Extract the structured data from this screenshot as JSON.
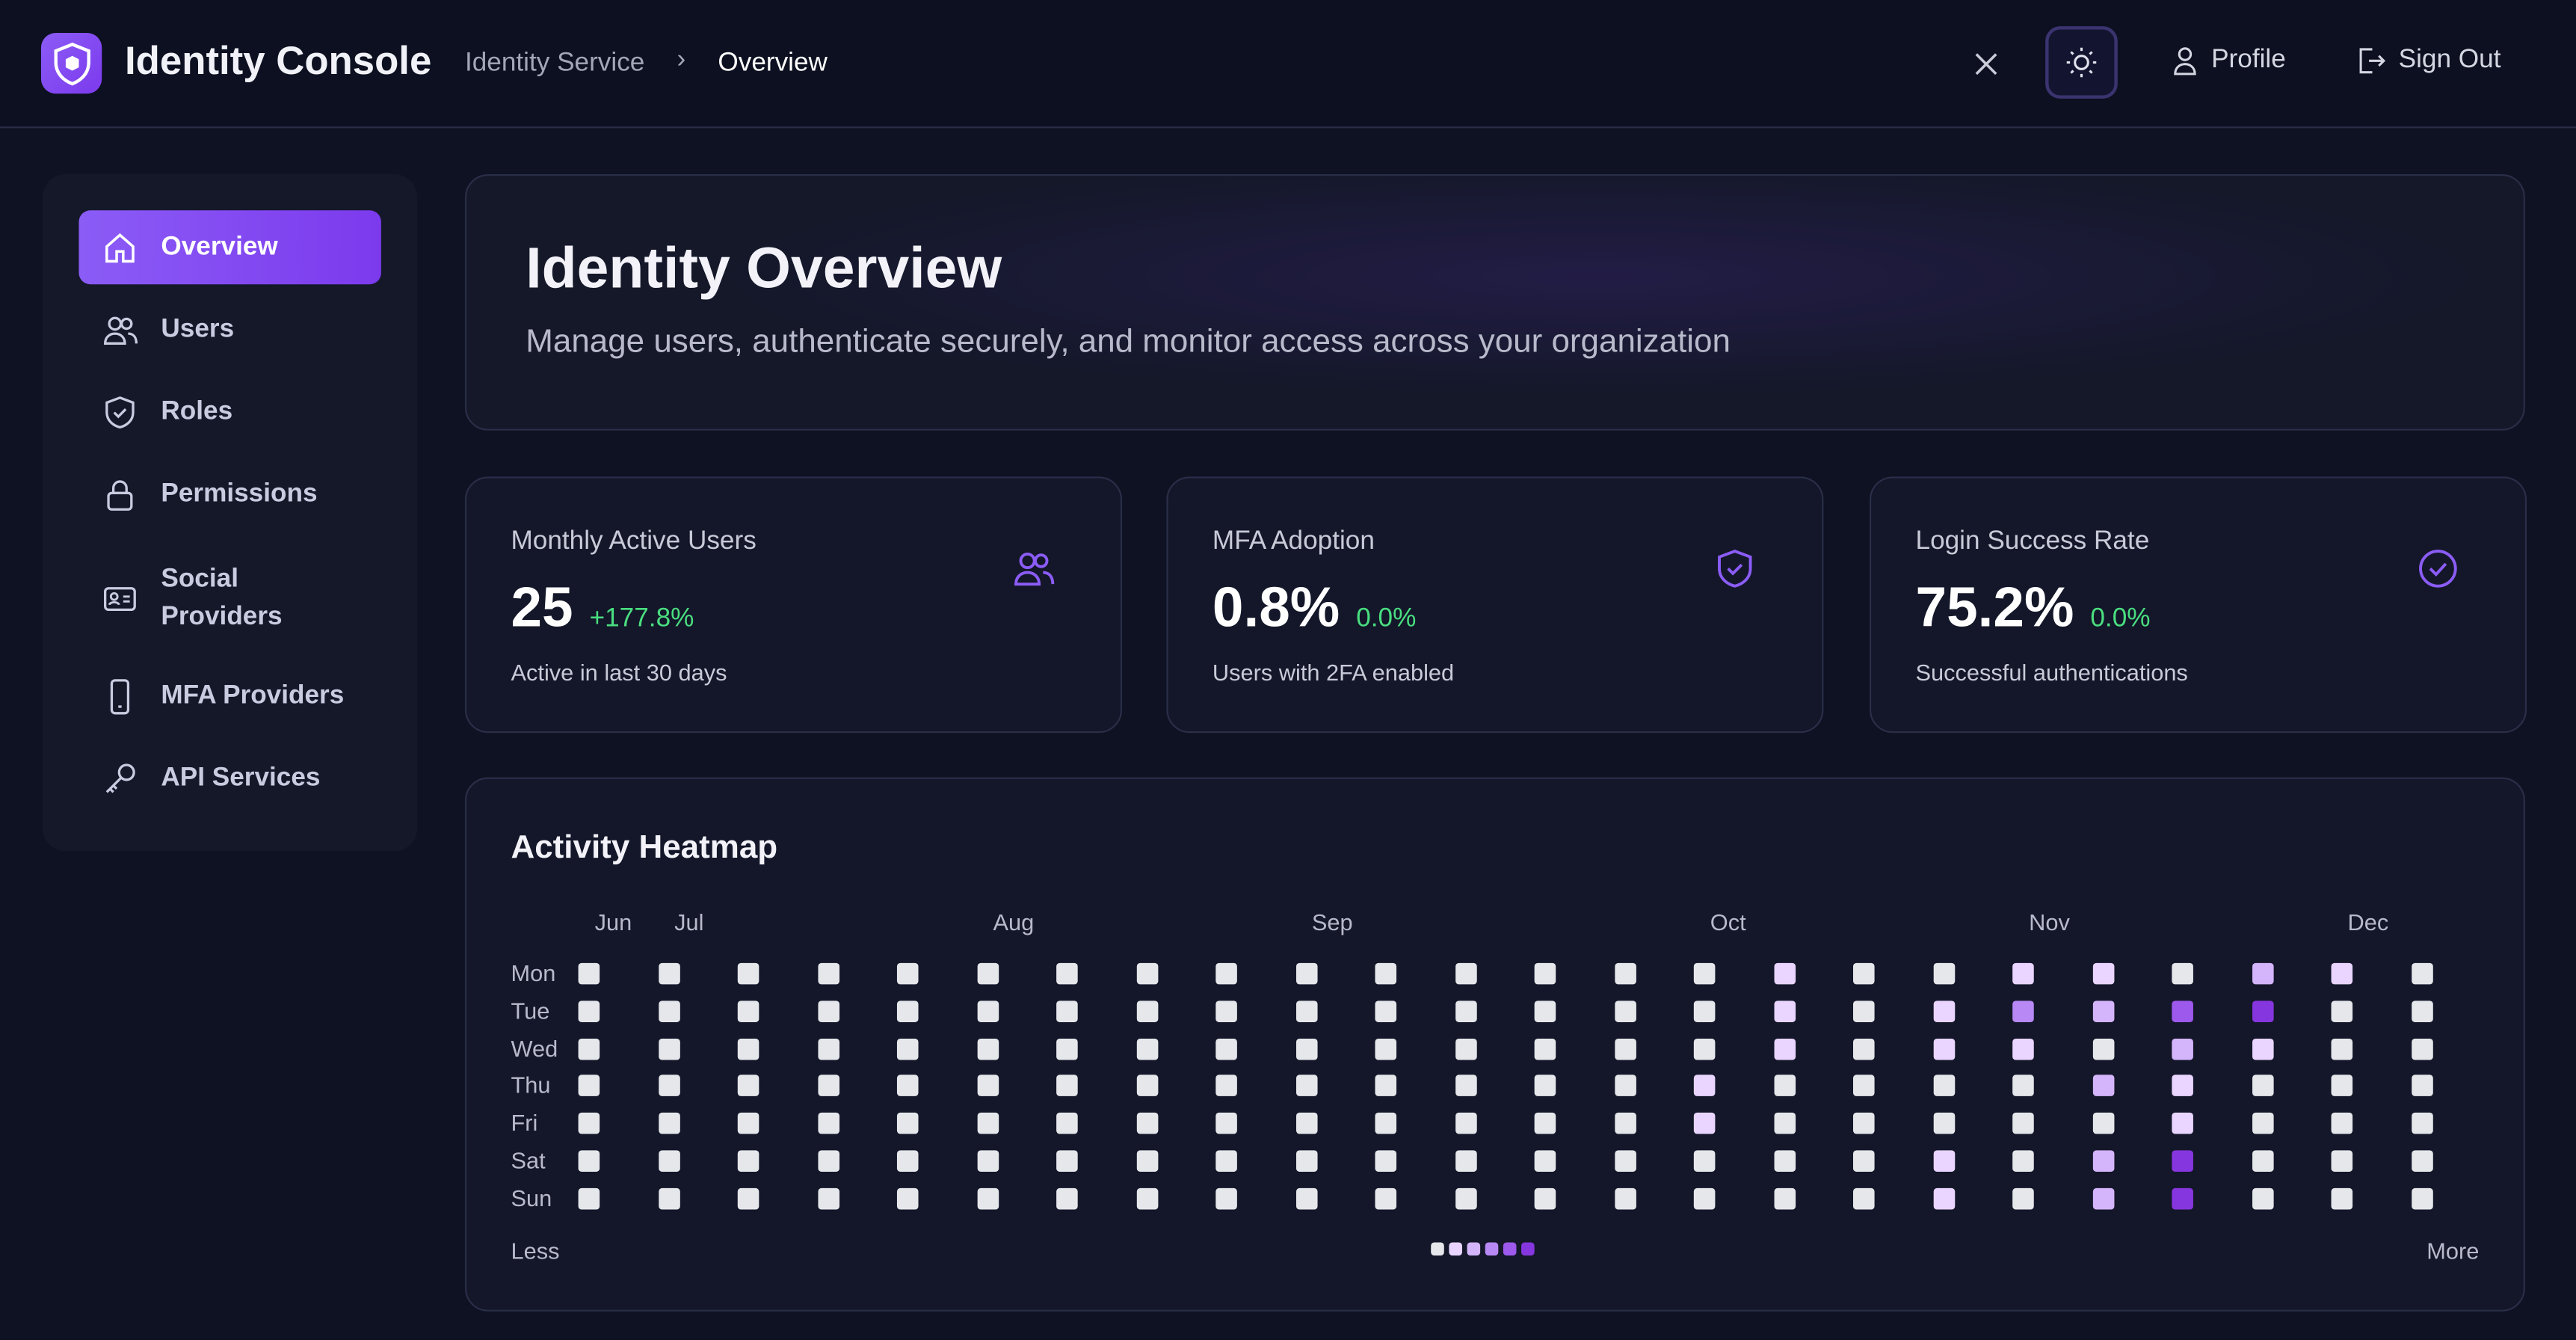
{
  "header": {
    "app_title": "Identity Console",
    "breadcrumb": [
      "Identity Service",
      "Overview"
    ],
    "profile_label": "Profile",
    "signout_label": "Sign Out"
  },
  "sidebar": {
    "items": [
      {
        "label": "Overview",
        "icon": "home-icon",
        "active": true
      },
      {
        "label": "Users",
        "icon": "users-icon"
      },
      {
        "label": "Roles",
        "icon": "shield-icon"
      },
      {
        "label": "Permissions",
        "icon": "lock-icon"
      },
      {
        "label": "Social Providers",
        "icon": "id-card-icon"
      },
      {
        "label": "MFA Providers",
        "icon": "phone-icon"
      },
      {
        "label": "API Services",
        "icon": "key-icon"
      }
    ]
  },
  "hero": {
    "title": "Identity Overview",
    "subtitle": "Manage users, authenticate securely, and monitor access across your organization"
  },
  "stats": [
    {
      "label": "Monthly Active Users",
      "value": "25",
      "change": "+177.8%",
      "sub": "Active in last 30 days",
      "icon": "users-icon"
    },
    {
      "label": "MFA Adoption",
      "value": "0.8%",
      "change": "0.0%",
      "sub": "Users with 2FA enabled",
      "icon": "shield-check-icon"
    },
    {
      "label": "Login Success Rate",
      "value": "75.2%",
      "change": "0.0%",
      "sub": "Successful authentications",
      "icon": "check-circle-icon"
    }
  ],
  "heatmap": {
    "title": "Activity Heatmap",
    "months": [
      {
        "label": "Jun",
        "col": 0
      },
      {
        "label": "Jul",
        "col": 1
      },
      {
        "label": "Aug",
        "col": 5
      },
      {
        "label": "Sep",
        "col": 9
      },
      {
        "label": "Oct",
        "col": 14
      },
      {
        "label": "Nov",
        "col": 18
      },
      {
        "label": "Dec",
        "col": 22
      }
    ],
    "days": [
      "Mon",
      "Tue",
      "Wed",
      "Thu",
      "Fri",
      "Sat",
      "Sun"
    ],
    "less_label": "Less",
    "more_label": "More",
    "colors": [
      "#e5e7eb",
      "#e9d5ff",
      "#d4b4fa",
      "#b888f5",
      "#9d58ec",
      "#8636de"
    ],
    "levels": [
      [
        0,
        0,
        0,
        0,
        0,
        0,
        0,
        0,
        0,
        0,
        0,
        0,
        0,
        0,
        0,
        1,
        0,
        0,
        1,
        1,
        0,
        2,
        1,
        0
      ],
      [
        0,
        0,
        0,
        0,
        0,
        0,
        0,
        0,
        0,
        0,
        0,
        0,
        0,
        0,
        0,
        1,
        0,
        1,
        3,
        2,
        4,
        5,
        0,
        0
      ],
      [
        0,
        0,
        0,
        0,
        0,
        0,
        0,
        0,
        0,
        0,
        0,
        0,
        0,
        0,
        0,
        1,
        0,
        1,
        1,
        0,
        2,
        1,
        0,
        0
      ],
      [
        0,
        0,
        0,
        0,
        0,
        0,
        0,
        0,
        0,
        0,
        0,
        0,
        0,
        0,
        1,
        0,
        0,
        0,
        0,
        2,
        1,
        0,
        0,
        0
      ],
      [
        0,
        0,
        0,
        0,
        0,
        0,
        0,
        0,
        0,
        0,
        0,
        0,
        0,
        0,
        1,
        0,
        0,
        0,
        0,
        0,
        1,
        0,
        0,
        0
      ],
      [
        0,
        0,
        0,
        0,
        0,
        0,
        0,
        0,
        0,
        0,
        0,
        0,
        0,
        0,
        0,
        0,
        0,
        1,
        0,
        2,
        5,
        0,
        0,
        0
      ],
      [
        0,
        0,
        0,
        0,
        0,
        0,
        0,
        0,
        0,
        0,
        0,
        0,
        0,
        0,
        0,
        0,
        0,
        1,
        0,
        2,
        5,
        0,
        0,
        0
      ]
    ]
  }
}
